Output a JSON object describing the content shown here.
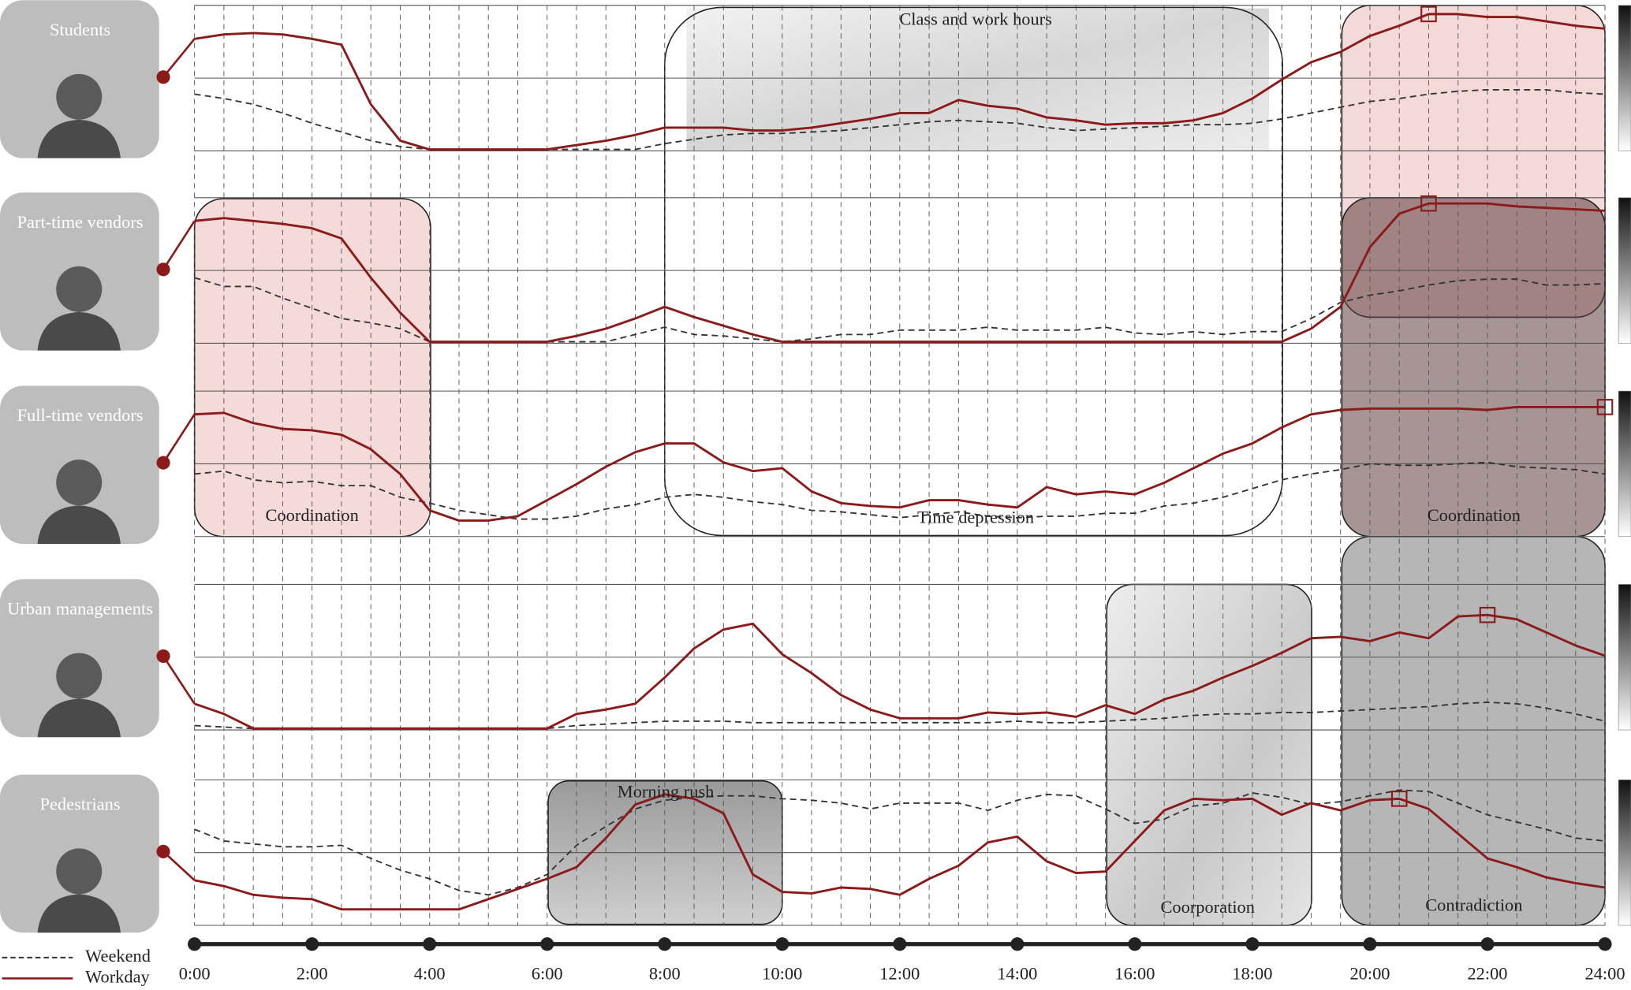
{
  "chart_data": {
    "type": "line",
    "x": [
      0,
      0.5,
      1,
      1.5,
      2,
      2.5,
      3,
      3.5,
      4,
      4.5,
      5,
      5.5,
      6,
      6.5,
      7,
      7.5,
      8,
      8.5,
      9,
      9.5,
      10,
      10.5,
      11,
      11.5,
      12,
      12.5,
      13,
      13.5,
      14,
      14.5,
      15,
      15.5,
      16,
      16.5,
      17,
      17.5,
      18,
      18.5,
      19,
      19.5,
      20,
      20.5,
      21,
      21.5,
      22,
      22.5,
      23,
      23.5,
      24
    ],
    "xlim": [
      0,
      24
    ],
    "xticks": [
      {
        "value": 0,
        "label": "0:00"
      },
      {
        "value": 2,
        "label": "2:00"
      },
      {
        "value": 4,
        "label": "4:00"
      },
      {
        "value": 6,
        "label": "6:00"
      },
      {
        "value": 8,
        "label": "8:00"
      },
      {
        "value": 10,
        "label": "10:00"
      },
      {
        "value": 12,
        "label": "12:00"
      },
      {
        "value": 14,
        "label": "14:00"
      },
      {
        "value": 16,
        "label": "16:00"
      },
      {
        "value": 18,
        "label": "18:00"
      },
      {
        "value": 20,
        "label": "20:00"
      },
      {
        "value": 22,
        "label": "22:00"
      },
      {
        "value": 24,
        "label": "24:00"
      }
    ],
    "ylim": [
      0,
      100
    ],
    "yticks": [
      0,
      50,
      100
    ],
    "grid": true,
    "panels": [
      {
        "name": "Students",
        "highlight_x": 21,
        "series": [
          {
            "name": "Weekend",
            "color": "#333333",
            "style": "dashed",
            "values": [
              39,
              36,
              32,
              26,
              19,
              13,
              7,
              3,
              1,
              1,
              1,
              1,
              1,
              1,
              1,
              1,
              5,
              8,
              11,
              12,
              12,
              13,
              14,
              16,
              18,
              20,
              21,
              20,
              19,
              16,
              14,
              15,
              16,
              17,
              18,
              18,
              19,
              22,
              26,
              30,
              34,
              36,
              39,
              41,
              42,
              42,
              42,
              40,
              39
            ]
          },
          {
            "name": "Workday",
            "color": "#8b1a1a",
            "style": "solid",
            "values": [
              77,
              80,
              81,
              80,
              77,
              73,
              32,
              7,
              1,
              1,
              1,
              1,
              1,
              4,
              7,
              11,
              16,
              16,
              16,
              14,
              14,
              16,
              19,
              22,
              26,
              26,
              35,
              31,
              29,
              23,
              21,
              18,
              19,
              19,
              21,
              26,
              36,
              49,
              61,
              68,
              79,
              86,
              94,
              94,
              92,
              92,
              89,
              86,
              84
            ]
          }
        ]
      },
      {
        "name": "Part-time vendors",
        "highlight_x": 21,
        "series": [
          {
            "name": "Weekend",
            "color": "#333333",
            "style": "dashed",
            "values": [
              45,
              39,
              39,
              31,
              24,
              17,
              14,
              10,
              1,
              1,
              1,
              1,
              1,
              1,
              1,
              6,
              11,
              6,
              5,
              3,
              1,
              3,
              6,
              6,
              9,
              9,
              9,
              11,
              9,
              9,
              9,
              11,
              7,
              6,
              8,
              6,
              8,
              8,
              17,
              28,
              33,
              36,
              40,
              43,
              44,
              44,
              40,
              40,
              41
            ]
          },
          {
            "name": "Workday",
            "color": "#8b1a1a",
            "style": "solid",
            "values": [
              84,
              86,
              84,
              82,
              79,
              72,
              45,
              21,
              1,
              1,
              1,
              1,
              1,
              5,
              10,
              17,
              25,
              18,
              12,
              6,
              1,
              1,
              1,
              1,
              1,
              1,
              1,
              1,
              1,
              1,
              1,
              1,
              1,
              1,
              1,
              1,
              1,
              1,
              10,
              25,
              66,
              89,
              96,
              96,
              96,
              94,
              93,
              92,
              91
            ]
          }
        ]
      },
      {
        "name": "Full-time vendors",
        "highlight_x": 24,
        "series": [
          {
            "name": "Weekend",
            "color": "#333333",
            "style": "dashed",
            "values": [
              43,
              45,
              39,
              37,
              38,
              35,
              35,
              27,
              23,
              18,
              15,
              12,
              12,
              14,
              19,
              22,
              27,
              29,
              27,
              24,
              22,
              18,
              17,
              15,
              13,
              15,
              17,
              14,
              13,
              14,
              14,
              16,
              16,
              21,
              23,
              27,
              33,
              39,
              43,
              46,
              50,
              49,
              49,
              50,
              51,
              48,
              47,
              46,
              43
            ]
          },
          {
            "name": "Workday",
            "color": "#8b1a1a",
            "style": "solid",
            "values": [
              84,
              85,
              78,
              74,
              73,
              70,
              60,
              43,
              18,
              11,
              11,
              14,
              25,
              36,
              48,
              58,
              64,
              64,
              51,
              45,
              47,
              31,
              23,
              21,
              20,
              25,
              25,
              22,
              20,
              34,
              29,
              31,
              29,
              37,
              47,
              57,
              64,
              75,
              84,
              87,
              88,
              88,
              88,
              88,
              87,
              89,
              89,
              89,
              89
            ]
          }
        ]
      },
      {
        "name": "Urban managements",
        "highlight_x": 22,
        "series": [
          {
            "name": "Weekend",
            "color": "#333333",
            "style": "dashed",
            "values": [
              3,
              2,
              1,
              1,
              1,
              1,
              1,
              1,
              1,
              1,
              1,
              1,
              1,
              3,
              4,
              5,
              6,
              6,
              6,
              5,
              5,
              5,
              5,
              5,
              5,
              5,
              5,
              5,
              6,
              5,
              5,
              6,
              7,
              8,
              10,
              11,
              11,
              12,
              12,
              13,
              14,
              15,
              16,
              18,
              19,
              18,
              15,
              11,
              6
            ]
          },
          {
            "name": "Workday",
            "color": "#8b1a1a",
            "style": "solid",
            "values": [
              18,
              11,
              1,
              1,
              1,
              1,
              1,
              1,
              1,
              1,
              1,
              1,
              1,
              11,
              14,
              18,
              36,
              56,
              69,
              73,
              52,
              39,
              24,
              14,
              8,
              8,
              8,
              12,
              11,
              12,
              9,
              17,
              11,
              21,
              27,
              36,
              44,
              53,
              63,
              64,
              61,
              67,
              63,
              78,
              79,
              76,
              67,
              58,
              51
            ]
          }
        ]
      },
      {
        "name": "Pedestrians",
        "highlight_x": 20.5,
        "series": [
          {
            "name": "Weekend",
            "color": "#333333",
            "style": "dashed",
            "values": [
              66,
              58,
              56,
              54,
              54,
              55,
              46,
              38,
              32,
              24,
              21,
              26,
              35,
              55,
              68,
              80,
              86,
              88,
              89,
              89,
              87,
              86,
              84,
              80,
              84,
              84,
              84,
              79,
              86,
              90,
              89,
              80,
              70,
              73,
              82,
              84,
              91,
              88,
              83,
              85,
              89,
              93,
              92,
              84,
              76,
              71,
              66,
              60,
              58
            ]
          },
          {
            "name": "Workday",
            "color": "#8b1a1a",
            "style": "solid",
            "values": [
              31,
              27,
              21,
              19,
              18,
              11,
              11,
              11,
              11,
              11,
              18,
              25,
              32,
              40,
              60,
              83,
              90,
              87,
              77,
              35,
              23,
              22,
              26,
              25,
              21,
              32,
              41,
              57,
              61,
              44,
              36,
              37,
              58,
              79,
              87,
              86,
              87,
              76,
              84,
              79,
              86,
              87,
              80,
              63,
              46,
              40,
              33,
              29,
              26
            ]
          }
        ]
      }
    ],
    "annotations": [
      "Class and work hours",
      "Time depression",
      "Coordination",
      "Coordination",
      "Coorporation",
      "Morning rush",
      "Contradiction"
    ]
  }
}
